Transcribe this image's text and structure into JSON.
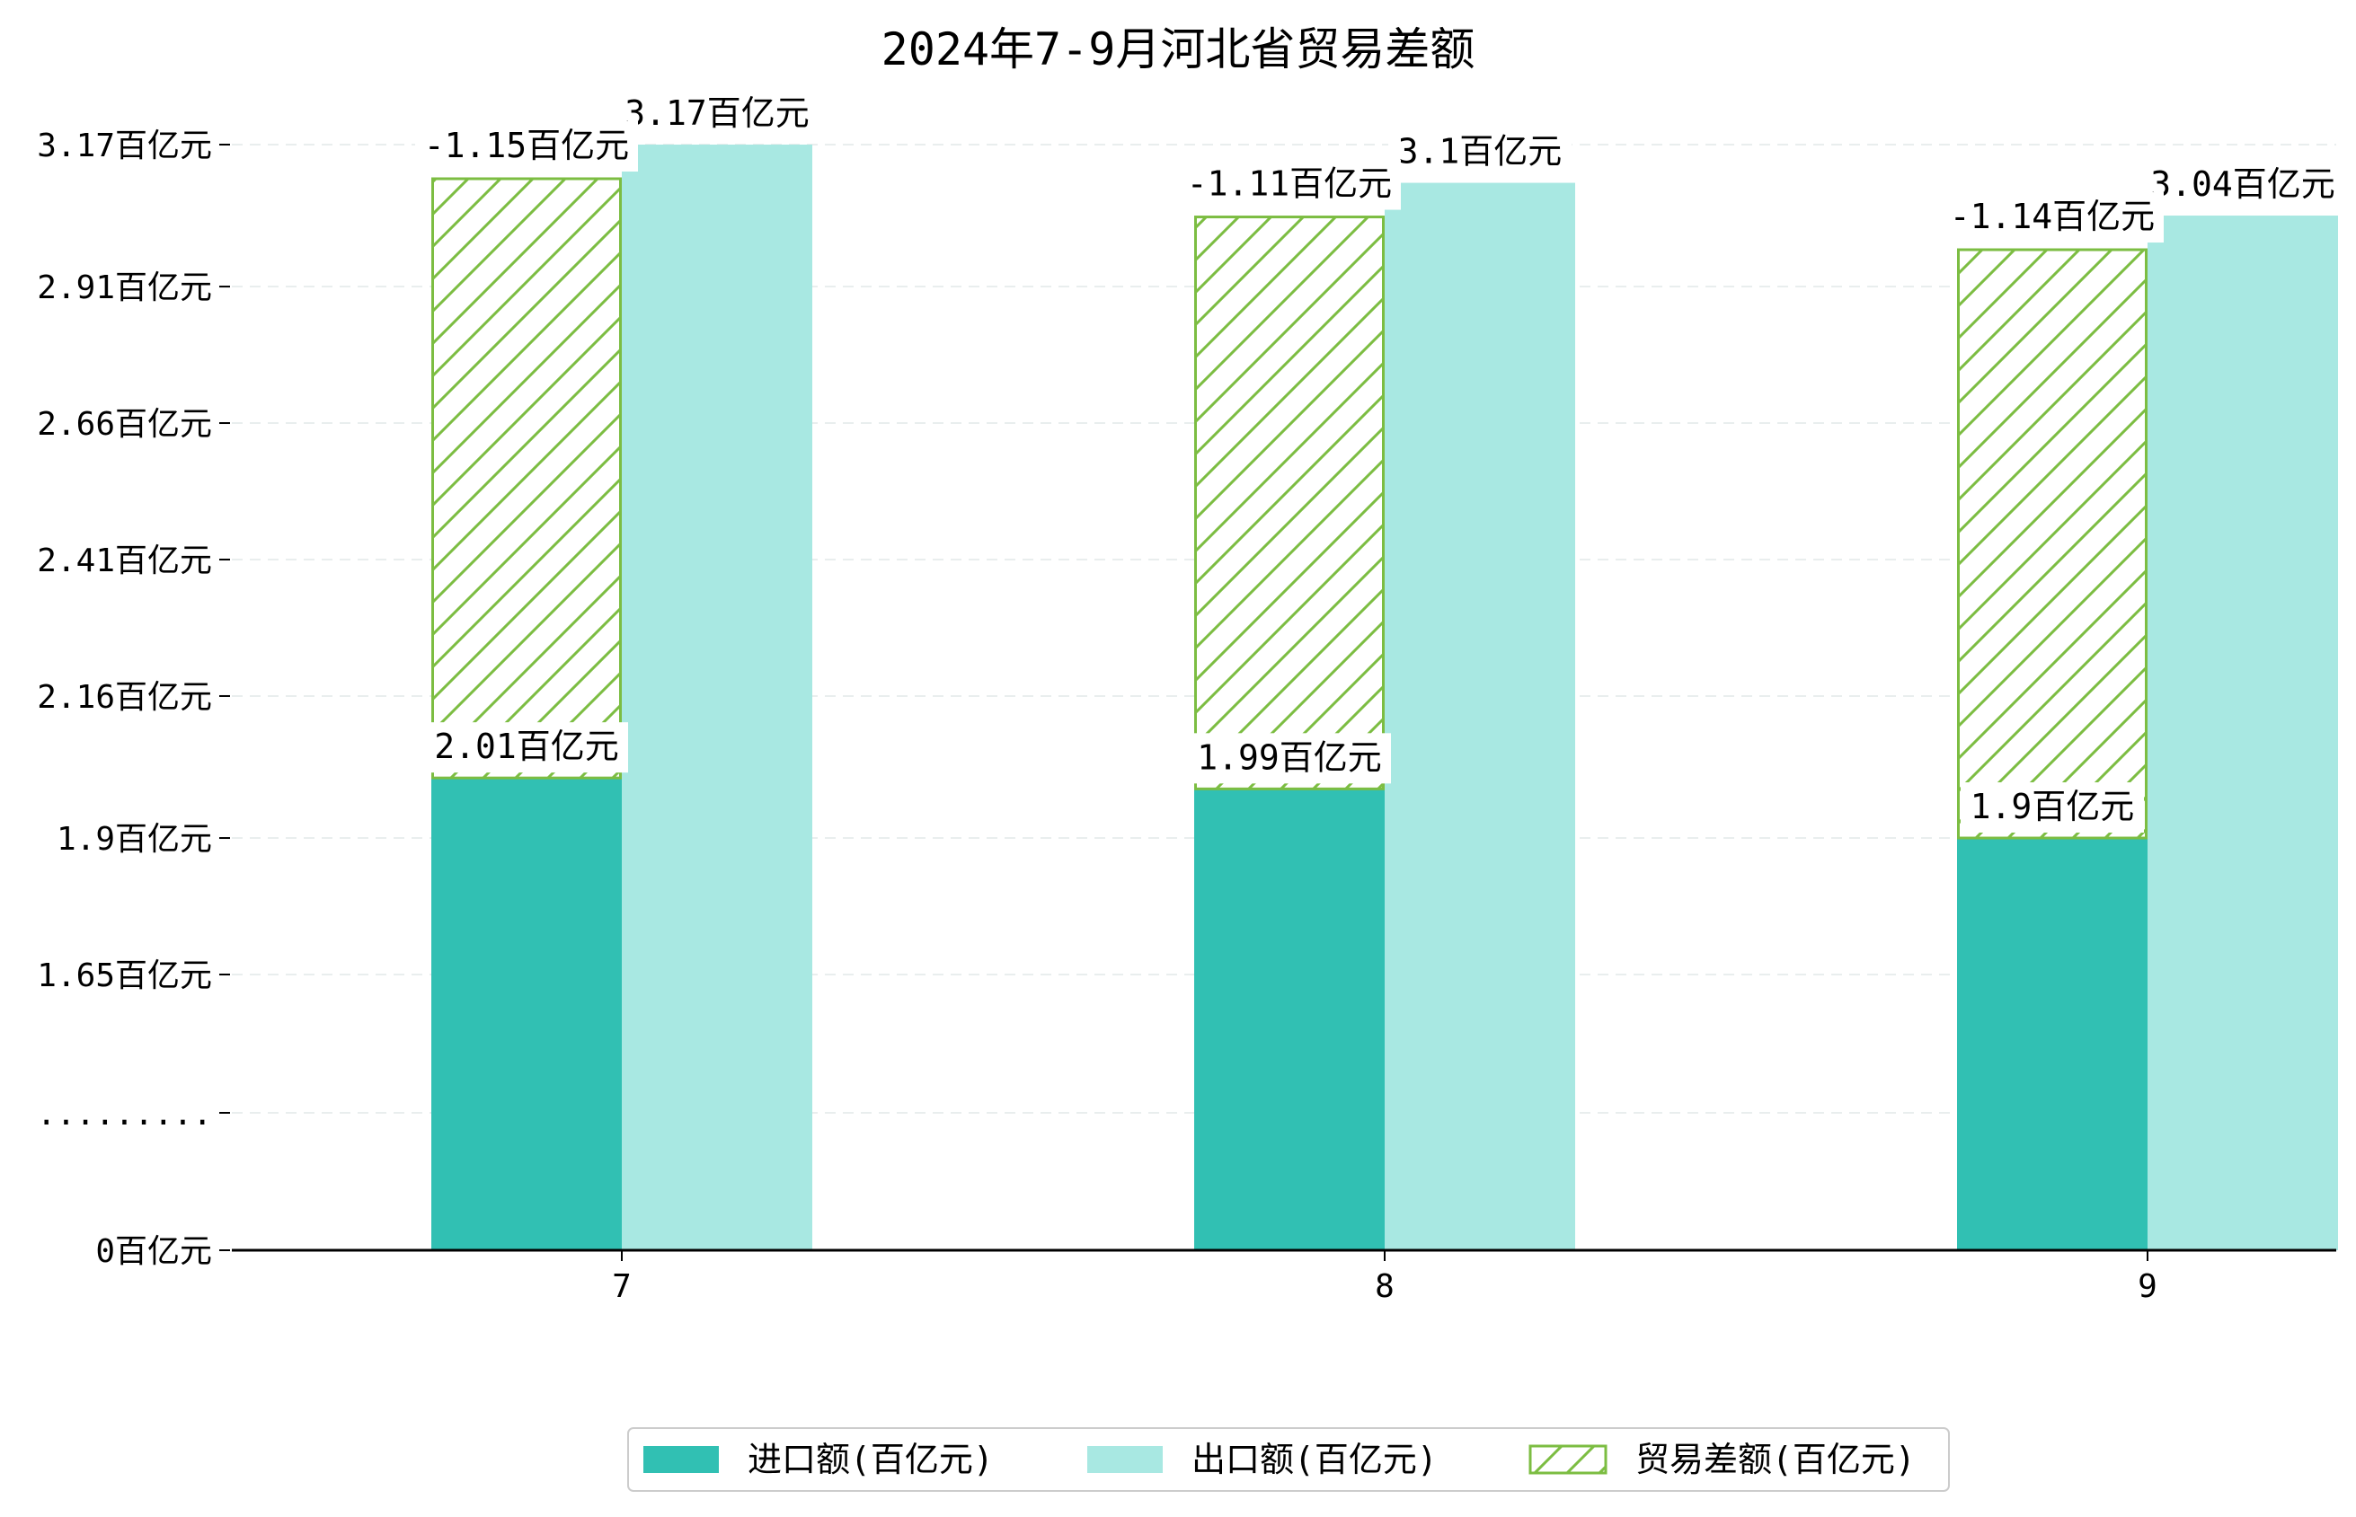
{
  "chart_data": {
    "type": "bar",
    "title": "2024年7-9月河北省贸易差额",
    "categories": [
      "7",
      "8",
      "9"
    ],
    "series": [
      {
        "name": "进口额(百亿元)",
        "values": [
          2.01,
          1.99,
          1.9
        ],
        "labels": [
          "2.01百亿元",
          "1.99百亿元",
          "1.9百亿元"
        ],
        "color": "#31c0b3"
      },
      {
        "name": "出口额(百亿元)",
        "values": [
          3.17,
          3.1,
          3.04
        ],
        "labels": [
          "3.17百亿元",
          "3.1百亿元",
          "3.04百亿元"
        ],
        "color": "#a8e8e2"
      },
      {
        "name": "贸易差额(百亿元)",
        "values": [
          -1.15,
          -1.11,
          -1.14
        ],
        "labels": [
          "-1.15百亿元",
          "-1.11百亿元",
          "-1.14百亿元"
        ],
        "color": "#7cbd42",
        "pattern": "hatch"
      }
    ],
    "y_ticks": [
      {
        "value": 0,
        "label": "0百亿元"
      },
      {
        "value": 1.4,
        "label": "........."
      },
      {
        "value": 1.65,
        "label": "1.65百亿元"
      },
      {
        "value": 1.9,
        "label": "1.9百亿元"
      },
      {
        "value": 2.16,
        "label": "2.16百亿元"
      },
      {
        "value": 2.41,
        "label": "2.41百亿元"
      },
      {
        "value": 2.66,
        "label": "2.66百亿元"
      },
      {
        "value": 2.91,
        "label": "2.91百亿元"
      },
      {
        "value": 3.17,
        "label": "3.17百亿元"
      }
    ],
    "y_axis_break": true,
    "grid": true,
    "legend_position": "bottom-center"
  }
}
